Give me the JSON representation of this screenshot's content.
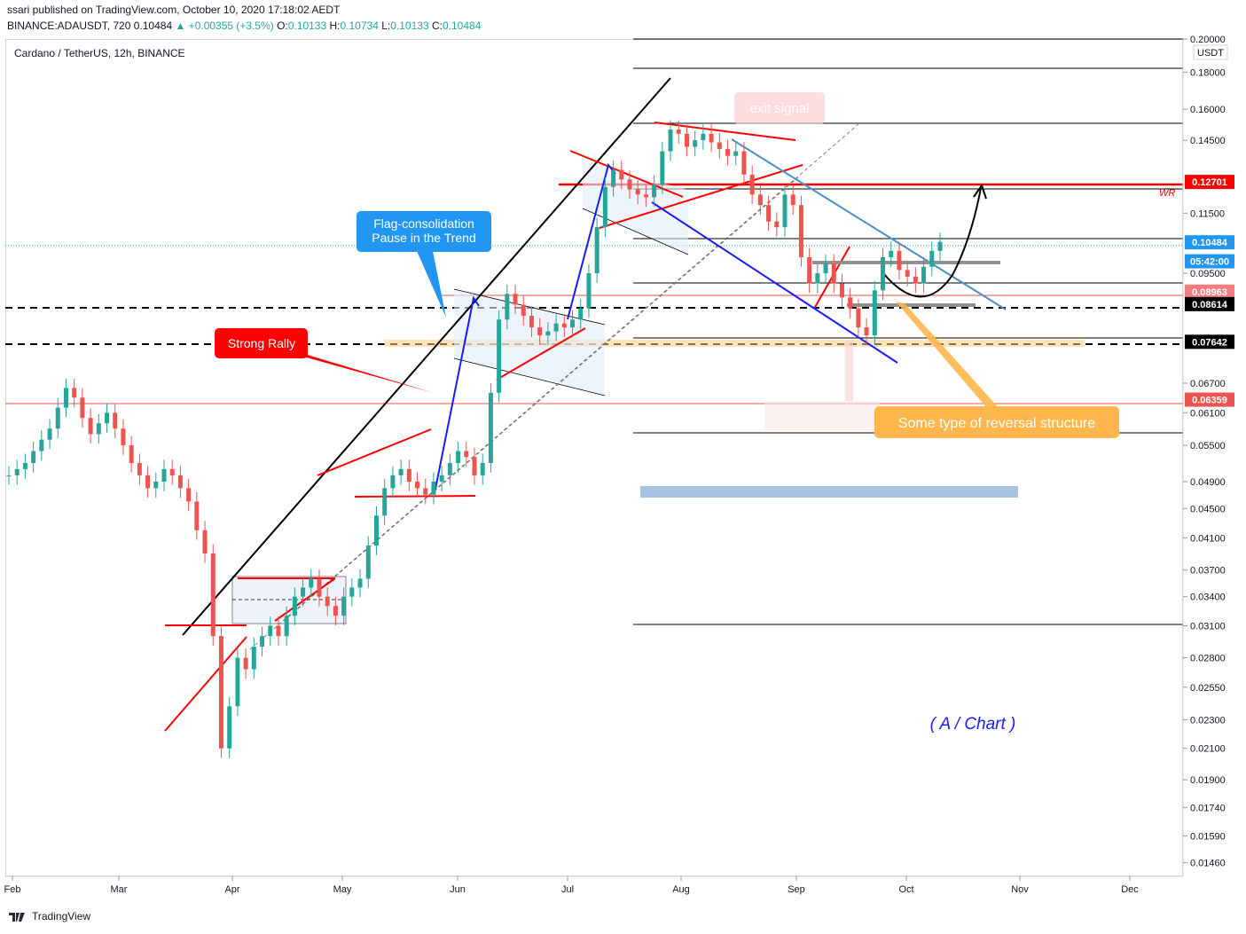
{
  "header": {
    "publisher_line": "ssari published on TradingView.com, October 10, 2020 17:18:02 AEDT",
    "symbol": "BINANCE:ADAUSDT, 720",
    "last": "0.10484",
    "change": "▲ +0.00355 (+3.5%)",
    "o_label": "O:",
    "o_value": "0.10133",
    "h_label": "H:",
    "h_value": "0.10734",
    "l_label": "L:",
    "l_value": "0.10133",
    "c_label": "C:",
    "c_value": "0.10484"
  },
  "chart_title": "Cardano / TetherUS, 12h, BINANCE",
  "currency_badge": "USDT",
  "footer_brand": "TradingView",
  "colors": {
    "up": "#26a69a",
    "down": "#ef5350",
    "black_line": "#000000",
    "red_line": "#ff0000",
    "blue_line": "#2962ff",
    "callout_blue": "#2196f3",
    "callout_red": "#ff0000",
    "callout_orange": "#ffb74d",
    "steel_blue": "#4a90c8"
  },
  "chart_data": {
    "type": "candlestick",
    "title": "Cardano / TetherUS, 12h, BINANCE",
    "y_scale": "log",
    "ylim": [
      0.0141,
      0.2
    ],
    "x_ticks": [
      "Feb",
      "Mar",
      "Apr",
      "May",
      "Jun",
      "Jul",
      "Aug",
      "Sep",
      "Oct",
      "Nov",
      "Dec"
    ],
    "y_ticks": [
      "0.20000",
      "0.18000",
      "0.16000",
      "0.14500",
      "0.11500",
      "0.09500",
      "0.06700",
      "0.06100",
      "0.05500",
      "0.04900",
      "0.04500",
      "0.04100",
      "0.03700",
      "0.03400",
      "0.03100",
      "0.02800",
      "0.02550",
      "0.02300",
      "0.02100",
      "0.01900",
      "0.01740",
      "0.01590",
      "0.01460"
    ],
    "price_badges": [
      {
        "label": "0.12701",
        "value": 0.12701,
        "color": "#ff0000"
      },
      {
        "label": "0.10484",
        "value": 0.10484,
        "color": "#2196f3"
      },
      {
        "label": "05:42:00",
        "value": 0.0987,
        "color": "#2196f3"
      },
      {
        "label": "0.08963",
        "value": 0.08963,
        "color": "#f77c80"
      },
      {
        "label": "0.08614",
        "value": 0.08614,
        "color": "#000000"
      },
      {
        "label": "0.07642",
        "value": 0.07642,
        "color": "#000000"
      },
      {
        "label": "0.06359",
        "value": 0.06359,
        "color": "#ef5350"
      }
    ],
    "horizontal_levels": [
      0.2,
      0.183,
      0.155,
      0.127,
      0.1048,
      0.0925,
      0.0861,
      0.0764,
      0.0636,
      0.058,
      0.0315
    ],
    "close_series": [
      0.05,
      0.051,
      0.052,
      0.054,
      0.056,
      0.058,
      0.062,
      0.066,
      0.064,
      0.06,
      0.057,
      0.059,
      0.061,
      0.058,
      0.055,
      0.052,
      0.05,
      0.048,
      0.049,
      0.051,
      0.05,
      0.048,
      0.046,
      0.042,
      0.039,
      0.03,
      0.021,
      0.024,
      0.028,
      0.027,
      0.029,
      0.03,
      0.031,
      0.03,
      0.032,
      0.034,
      0.035,
      0.036,
      0.034,
      0.033,
      0.032,
      0.034,
      0.035,
      0.036,
      0.04,
      0.044,
      0.048,
      0.05,
      0.051,
      0.049,
      0.048,
      0.047,
      0.049,
      0.05,
      0.052,
      0.054,
      0.053,
      0.05,
      0.052,
      0.065,
      0.082,
      0.089,
      0.086,
      0.083,
      0.08,
      0.078,
      0.079,
      0.081,
      0.08,
      0.082,
      0.085,
      0.095,
      0.11,
      0.125,
      0.132,
      0.128,
      0.124,
      0.122,
      0.121,
      0.126,
      0.14,
      0.15,
      0.148,
      0.142,
      0.145,
      0.148,
      0.144,
      0.141,
      0.138,
      0.14,
      0.13,
      0.122,
      0.118,
      0.112,
      0.11,
      0.122,
      0.118,
      0.1,
      0.092,
      0.095,
      0.098,
      0.092,
      0.088,
      0.085,
      0.08,
      0.078,
      0.09,
      0.1,
      0.102,
      0.096,
      0.094,
      0.092,
      0.097,
      0.102,
      0.105
    ],
    "annotations": [
      {
        "text": "Flag-consolidation\nPause in the Trend",
        "color": "#2196f3"
      },
      {
        "text": "Strong Rally",
        "color": "#ff0000"
      },
      {
        "text": "exit signal",
        "color": "#ffcdd2"
      },
      {
        "text": "Some type of reversal structure",
        "color": "#ffb74d"
      },
      {
        "text": "( A / Chart )",
        "color": "#1a1aff"
      },
      {
        "text": "WR",
        "color": "#ff0000"
      }
    ]
  }
}
